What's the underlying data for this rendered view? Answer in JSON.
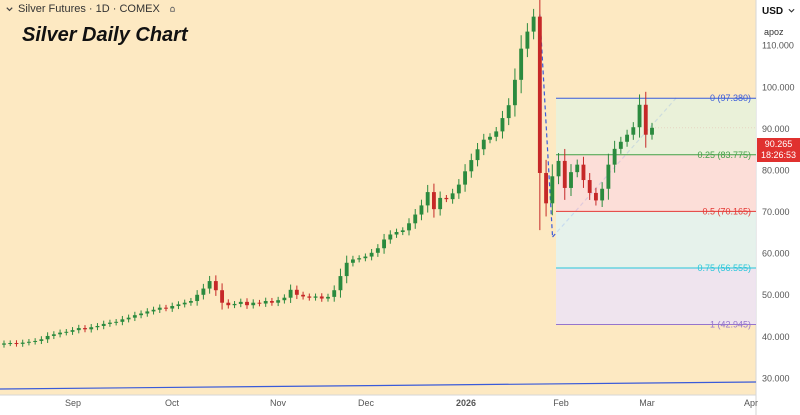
{
  "header": {
    "instrument_line": "Silver Futures · 1D · COMEX",
    "title": "Silver Daily Chart"
  },
  "price_scale": {
    "currency": "USD",
    "mode": "apoz",
    "last_price": "90.265",
    "countdown": "18:26:53"
  },
  "colors": {
    "background": "#fde9c2",
    "up": "#2b8a3e",
    "down": "#c62828",
    "accent_blue": "#3a5bd9",
    "badge_red": "#e0312f"
  },
  "chart_data": {
    "type": "candlestick",
    "title": "Silver Daily Chart",
    "xlabel": "",
    "ylabel": "",
    "ylim": [
      26,
      121
    ],
    "x_ticks": [
      "Sep",
      "Oct",
      "Nov",
      "Dec",
      "2026",
      "Feb",
      "Mar",
      "Apr"
    ],
    "y_ticks": [
      30,
      40,
      50,
      60,
      70,
      80,
      90,
      100,
      110
    ],
    "last_price": 90.265,
    "closes": [
      38.4,
      38.5,
      38.3,
      38.6,
      38.8,
      39.0,
      39.4,
      40.2,
      40.6,
      41.0,
      41.2,
      41.6,
      42.1,
      41.8,
      42.3,
      42.6,
      43.1,
      43.4,
      43.6,
      44.2,
      44.6,
      45.2,
      45.6,
      46.1,
      46.5,
      47.0,
      46.8,
      47.4,
      47.8,
      48.2,
      48.6,
      50.1,
      51.6,
      53.4,
      51.2,
      48.2,
      47.6,
      47.9,
      48.4,
      47.6,
      48.2,
      48.0,
      48.6,
      48.2,
      48.8,
      49.4,
      51.3,
      50.1,
      49.7,
      49.4,
      49.7,
      49.2,
      49.6,
      51.2,
      54.6,
      57.8,
      58.6,
      58.9,
      59.3,
      60.2,
      61.3,
      63.4,
      64.6,
      65.2,
      65.6,
      67.3,
      69.4,
      71.6,
      74.8,
      70.7,
      73.4,
      73.1,
      74.5,
      76.6,
      79.8,
      82.5,
      85.1,
      87.4,
      88.1,
      89.4,
      92.6,
      95.7,
      101.8,
      109.3,
      113.4,
      117.0,
      79.4,
      72.1,
      78.6,
      82.3,
      75.8,
      79.6,
      81.4,
      77.7,
      74.6,
      72.8,
      75.6,
      81.4,
      85.2,
      86.9,
      88.6,
      90.4,
      95.8,
      88.6,
      90.265
    ],
    "fibonacci": [
      {
        "ratio": "0",
        "price": "97.380",
        "color": "#3a5bd9"
      },
      {
        "ratio": "0.25",
        "price": "83.775",
        "color": "#43a047"
      },
      {
        "ratio": "0.5",
        "price": "70.165",
        "color": "#e53935"
      },
      {
        "ratio": "0.75",
        "price": "56.555",
        "color": "#26c6da"
      },
      {
        "ratio": "1",
        "price": "42.945",
        "color": "#9575cd"
      }
    ],
    "fib_labels": [
      "0 (97.380)",
      "0.25 (83.775)",
      "0.5 (70.165)",
      "0.75 (56.555)",
      "1 (42.945)"
    ]
  }
}
